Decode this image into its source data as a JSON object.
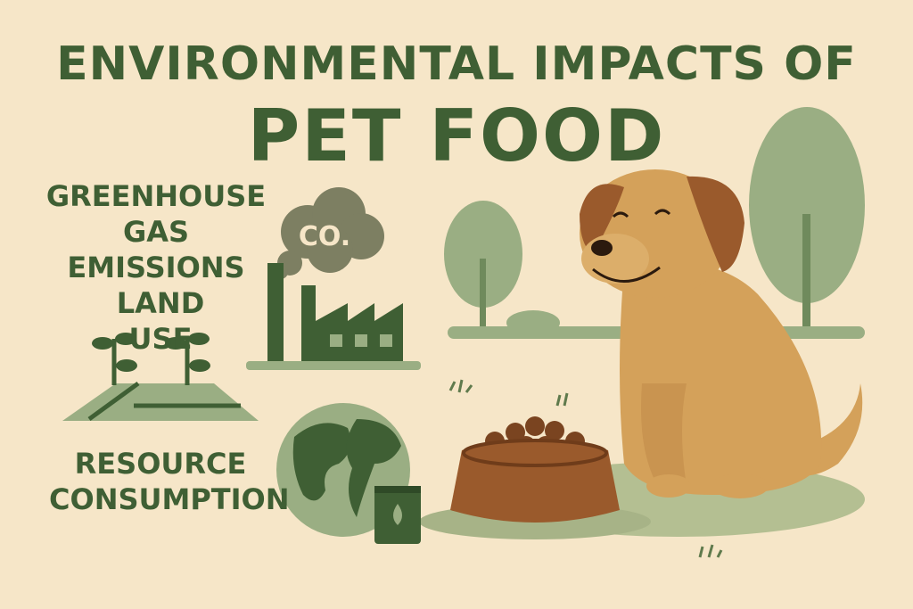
{
  "title": {
    "line1": "ENVIRONMENTAL IMPACTS OF",
    "line2": "PET FOOD"
  },
  "labels": {
    "greenhouse_line1": "GREENHOUSE",
    "greenhouse_line2": "GAS EMISSIONS",
    "land_use": "LAND USE",
    "resource_line1": "RESOURCE",
    "resource_line2": "CONSUMPTION"
  },
  "cloud_text": "CO.",
  "colors": {
    "background": "#f6e6c8",
    "dark_green": "#3f5f34",
    "sage": "#8fa47a",
    "dog": "#d4a15a",
    "bowl": "#8b4f26"
  },
  "icons": [
    "smoke-cloud-icon",
    "factory-icon",
    "sprout-field-icon",
    "globe-icon",
    "fuel-can-icon",
    "tree-icon",
    "dog-illustration",
    "food-bowl-icon"
  ]
}
